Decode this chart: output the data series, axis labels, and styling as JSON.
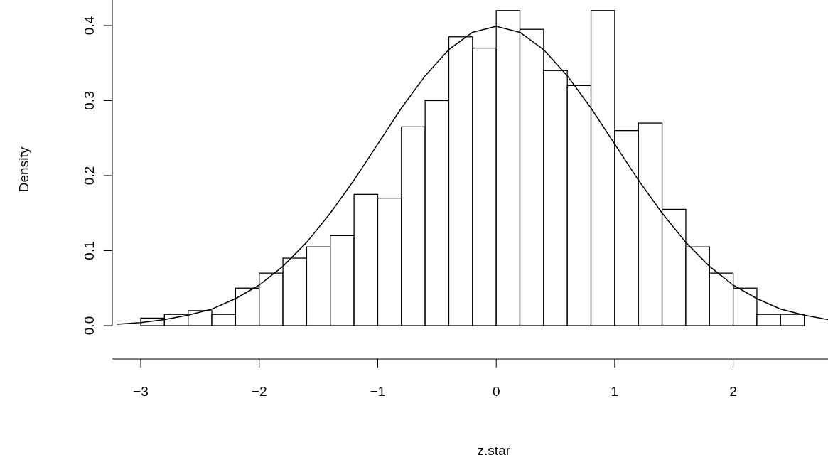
{
  "chart_data": {
    "type": "histogram",
    "xlabel": "z.star",
    "ylabel": "Density",
    "bins": [
      -3.0,
      -2.8,
      -2.6,
      -2.4,
      -2.2,
      -2.0,
      -1.8,
      -1.6,
      -1.4,
      -1.2,
      -1.0,
      -0.8,
      -0.6,
      -0.4,
      -0.2,
      0,
      0.2,
      0.4,
      0.6,
      0.8,
      1.0,
      1.2,
      1.4,
      1.6,
      1.8,
      2.0,
      2.2,
      2.4,
      2.6
    ],
    "values": [
      0.01,
      0.015,
      0.02,
      0.015,
      0.05,
      0.07,
      0.09,
      0.105,
      0.12,
      0.175,
      0.17,
      0.265,
      0.3,
      0.385,
      0.37,
      0.42,
      0.395,
      0.34,
      0.32,
      0.42,
      0.26,
      0.27,
      0.155,
      0.105,
      0.07,
      0.05,
      0.015,
      0.015
    ],
    "color": "#ffffff",
    "series": [
      {
        "type": "line",
        "color": "#000000",
        "x": [
          -3.2,
          -3.0,
          -2.8,
          -2.6,
          -2.4,
          -2.2,
          -2.0,
          -1.8,
          -1.6,
          -1.4,
          -1.2,
          -1.0,
          -0.8,
          -0.6,
          -0.4,
          -0.2,
          0,
          0.2,
          0.4,
          0.6,
          0.8,
          1.0,
          1.2,
          1.4,
          1.6,
          1.8,
          2.0,
          2.2,
          2.4,
          2.6,
          2.8
        ],
        "values": [
          0.002,
          0.004,
          0.008,
          0.014,
          0.022,
          0.036,
          0.054,
          0.079,
          0.111,
          0.15,
          0.194,
          0.242,
          0.29,
          0.333,
          0.368,
          0.391,
          0.399,
          0.391,
          0.368,
          0.333,
          0.29,
          0.242,
          0.194,
          0.15,
          0.111,
          0.079,
          0.054,
          0.036,
          0.022,
          0.014,
          0.008
        ]
      }
    ],
    "xlim": [
      -3.24,
      2.8
    ],
    "ylim": [
      0,
      0.435
    ],
    "xticks": [
      {
        "value": -3,
        "label": "−3"
      },
      {
        "value": -2,
        "label": "−2"
      },
      {
        "value": -1,
        "label": "−1"
      },
      0,
      1,
      2
    ],
    "yticks": [
      {
        "value": 0,
        "label": "0.0"
      },
      {
        "value": 0.1,
        "label": "0.1"
      },
      {
        "value": 0.2,
        "label": "0.2"
      },
      {
        "value": 0.3,
        "label": "0.3"
      },
      {
        "value": 0.4,
        "label": "0.4"
      }
    ],
    "grid": false
  }
}
